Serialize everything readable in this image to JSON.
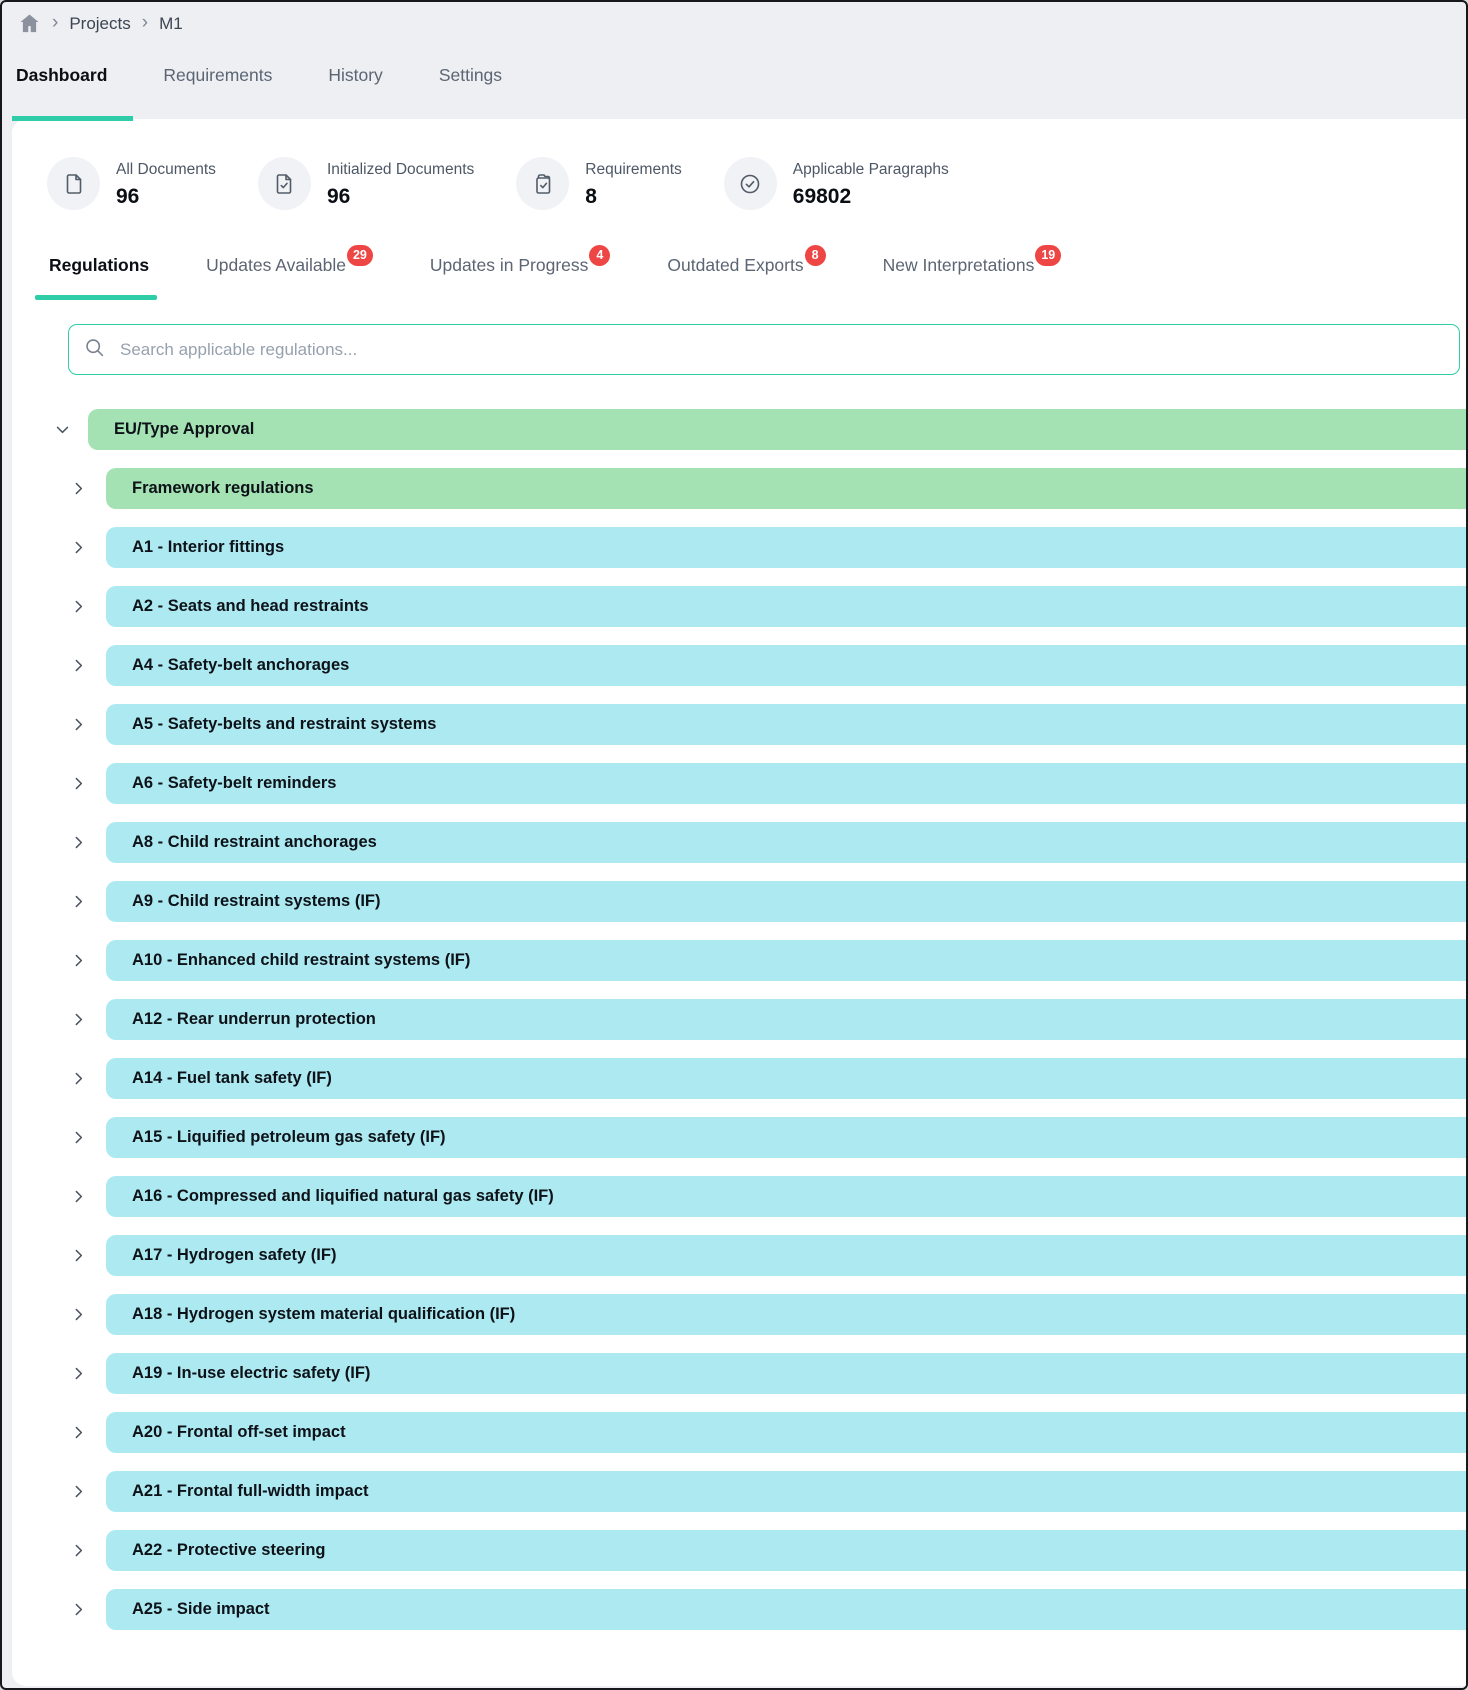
{
  "colors": {
    "accent_teal": "#2fcda7",
    "badge_red": "#ee4545",
    "row_green": "#a4e2b3",
    "row_blue": "#ade9f1"
  },
  "breadcrumb": {
    "items": [
      "Projects",
      "M1"
    ],
    "separator": "›"
  },
  "main_tabs": [
    {
      "label": "Dashboard",
      "active": true
    },
    {
      "label": "Requirements",
      "active": false
    },
    {
      "label": "History",
      "active": false
    },
    {
      "label": "Settings",
      "active": false
    }
  ],
  "stats": [
    {
      "icon": "document-icon",
      "label": "All Documents",
      "value": "96"
    },
    {
      "icon": "document-check-icon",
      "label": "Initialized Documents",
      "value": "96"
    },
    {
      "icon": "copy-check-icon",
      "label": "Requirements",
      "value": "8"
    },
    {
      "icon": "circle-check-icon",
      "label": "Applicable Paragraphs",
      "value": "69802"
    }
  ],
  "sub_tabs": [
    {
      "label": "Regulations",
      "active": true,
      "badge": null
    },
    {
      "label": "Updates Available",
      "active": false,
      "badge": "29"
    },
    {
      "label": "Updates in Progress",
      "active": false,
      "badge": "4"
    },
    {
      "label": "Outdated Exports",
      "active": false,
      "badge": "8"
    },
    {
      "label": "New Interpretations",
      "active": false,
      "badge": "19"
    }
  ],
  "search": {
    "placeholder": "Search applicable regulations..."
  },
  "regulation_tree": [
    {
      "label": "EU/Type Approval",
      "color": "green",
      "level": 0,
      "expanded": true
    },
    {
      "label": "Framework regulations",
      "color": "green",
      "level": 1,
      "expanded": false
    },
    {
      "label": "A1 - Interior fittings",
      "color": "blue",
      "level": 1,
      "expanded": false
    },
    {
      "label": "A2 - Seats and head restraints",
      "color": "blue",
      "level": 1,
      "expanded": false
    },
    {
      "label": "A4 - Safety-belt anchorages",
      "color": "blue",
      "level": 1,
      "expanded": false
    },
    {
      "label": "A5 - Safety-belts and restraint systems",
      "color": "blue",
      "level": 1,
      "expanded": false
    },
    {
      "label": "A6 - Safety-belt reminders",
      "color": "blue",
      "level": 1,
      "expanded": false
    },
    {
      "label": "A8 - Child restraint anchorages",
      "color": "blue",
      "level": 1,
      "expanded": false
    },
    {
      "label": "A9 - Child restraint systems (IF)",
      "color": "blue",
      "level": 1,
      "expanded": false
    },
    {
      "label": "A10 - Enhanced child restraint systems (IF)",
      "color": "blue",
      "level": 1,
      "expanded": false
    },
    {
      "label": "A12 - Rear underrun protection",
      "color": "blue",
      "level": 1,
      "expanded": false
    },
    {
      "label": "A14 - Fuel tank safety (IF)",
      "color": "blue",
      "level": 1,
      "expanded": false
    },
    {
      "label": "A15 - Liquified petroleum gas safety (IF)",
      "color": "blue",
      "level": 1,
      "expanded": false
    },
    {
      "label": "A16 - Compressed and liquified natural gas safety (IF)",
      "color": "blue",
      "level": 1,
      "expanded": false
    },
    {
      "label": "A17 - Hydrogen safety (IF)",
      "color": "blue",
      "level": 1,
      "expanded": false
    },
    {
      "label": "A18 - Hydrogen system material qualification (IF)",
      "color": "blue",
      "level": 1,
      "expanded": false
    },
    {
      "label": "A19 - In-use electric safety (IF)",
      "color": "blue",
      "level": 1,
      "expanded": false
    },
    {
      "label": "A20 - Frontal off-set impact",
      "color": "blue",
      "level": 1,
      "expanded": false
    },
    {
      "label": "A21 - Frontal full-width impact",
      "color": "blue",
      "level": 1,
      "expanded": false
    },
    {
      "label": "A22 - Protective steering",
      "color": "blue",
      "level": 1,
      "expanded": false
    },
    {
      "label": "A25 - Side impact",
      "color": "blue",
      "level": 1,
      "expanded": false
    }
  ]
}
